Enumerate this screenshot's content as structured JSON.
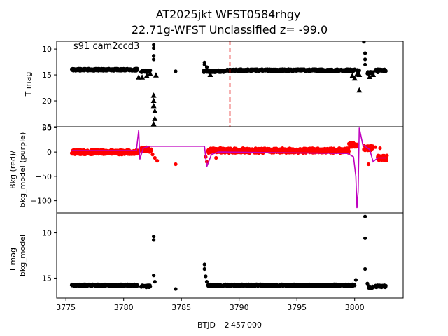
{
  "chart_data": {
    "type": "scatter",
    "title_line1": "AT2025jkt  WFST0584rhgy",
    "title_line2": "22.71g-WFST Unclassified z= -99.0",
    "xlabel": "BTJD −2 457 000",
    "xlim": [
      3774.2,
      3804.2
    ],
    "xticks": [
      3775,
      3780,
      3785,
      3790,
      3795,
      3800
    ],
    "vline_x": 3789.2,
    "vline_color": "#e00000",
    "panels": [
      {
        "id": "tmag",
        "ylabel": [
          "T mag"
        ],
        "annotation": "s91 cam2ccd3",
        "ylim": [
          25,
          8.5
        ],
        "yticks": [
          10,
          15,
          20,
          25
        ],
        "series": [
          {
            "kind": "points",
            "color": "#000000",
            "segments": [
              [
                3775.5,
                3781.2,
                14.0
              ],
              [
                3781.5,
                3782.3,
                14.3
              ],
              [
                3786.9,
                3788.8,
                14.3
              ],
              [
                3788.9,
                3800.0,
                14.1
              ],
              [
                3800.2,
                3800.4,
                14.2
              ],
              [
                3801.1,
                3801.6,
                14.6
              ],
              [
                3801.8,
                3802.7,
                14.1
              ]
            ],
            "isolated": [
              [
                3782.6,
                9.2
              ],
              [
                3782.6,
                9.8
              ],
              [
                3782.6,
                12.0
              ],
              [
                3782.6,
                11.3
              ],
              [
                3784.5,
                14.3
              ],
              [
                3787.0,
                12.6
              ],
              [
                3787.0,
                13.0
              ],
              [
                3787.2,
                13.5
              ],
              [
                3800.8,
                8.6
              ],
              [
                3800.9,
                10.8
              ],
              [
                3800.9,
                12.0
              ],
              [
                3800.9,
                13.0
              ],
              [
                3802.0,
                14.5
              ]
            ]
          },
          {
            "kind": "triangles",
            "color": "#000000",
            "points": [
              [
                3781.3,
                15.5
              ],
              [
                3781.6,
                15.5
              ],
              [
                3782.0,
                15.2
              ],
              [
                3782.3,
                14.8
              ],
              [
                3782.8,
                15.1
              ],
              [
                3782.6,
                19.0
              ],
              [
                3782.6,
                20.0
              ],
              [
                3782.6,
                21.0
              ],
              [
                3782.7,
                22.0
              ],
              [
                3782.7,
                23.5
              ],
              [
                3782.6,
                24.5
              ],
              [
                3787.5,
                15.0
              ],
              [
                3799.8,
                15.2
              ],
              [
                3800.0,
                15.7
              ],
              [
                3800.2,
                14.9
              ],
              [
                3800.4,
                15.0
              ],
              [
                3800.4,
                18.0
              ],
              [
                3801.3,
                15.4
              ],
              [
                3801.6,
                15.0
              ]
            ]
          }
        ]
      },
      {
        "id": "bkg",
        "ylabel": [
          "Bkg (red)/",
          "bkg_model (purple)"
        ],
        "ylim": [
          -125,
          52
        ],
        "yticks": [
          50,
          0,
          -50,
          -100
        ],
        "series": [
          {
            "kind": "points",
            "color": "#ff0000",
            "segments": [
              [
                3775.5,
                3781.3,
                0
              ],
              [
                3781.5,
                3782.4,
                5
              ],
              [
                3787.3,
                3799.5,
                3
              ],
              [
                3799.5,
                3800.2,
                15
              ],
              [
                3800.8,
                3801.6,
                8
              ],
              [
                3802.0,
                3802.8,
                -12
              ]
            ],
            "isolated": [
              [
                3782.5,
                -5
              ],
              [
                3782.7,
                -12
              ],
              [
                3782.9,
                -18
              ],
              [
                3784.5,
                -25
              ],
              [
                3787.1,
                -10
              ],
              [
                3787.2,
                -20
              ],
              [
                3788.0,
                -12
              ],
              [
                3801.2,
                -25
              ],
              [
                3801.8,
                10
              ],
              [
                3802.2,
                8
              ]
            ]
          },
          {
            "kind": "line",
            "color": "#bf00bf",
            "points": [
              [
                3775.5,
                3
              ],
              [
                3781.1,
                3
              ],
              [
                3781.3,
                45
              ],
              [
                3781.4,
                -15
              ],
              [
                3781.7,
                8
              ],
              [
                3782.2,
                12
              ],
              [
                3787.0,
                12
              ],
              [
                3787.2,
                -30
              ],
              [
                3787.6,
                -5
              ],
              [
                3788.2,
                0
              ],
              [
                3799.4,
                -3
              ],
              [
                3799.9,
                -10
              ],
              [
                3800.1,
                -50
              ],
              [
                3800.2,
                -115
              ],
              [
                3800.3,
                -80
              ],
              [
                3800.4,
                50
              ],
              [
                3800.7,
                15
              ],
              [
                3801.3,
                5
              ],
              [
                3801.6,
                -20
              ],
              [
                3802.0,
                -12
              ],
              [
                3802.7,
                -12
              ]
            ]
          }
        ]
      },
      {
        "id": "diff",
        "ylabel": [
          "T mag −",
          "bkg_model"
        ],
        "ylim": [
          17.2,
          7.8
        ],
        "yticks": [
          10,
          15
        ],
        "series": [
          {
            "kind": "points",
            "color": "#000000",
            "segments": [
              [
                3775.5,
                3781.2,
                15.8
              ],
              [
                3781.5,
                3782.3,
                15.9
              ],
              [
                3787.3,
                3800.0,
                15.8
              ],
              [
                3801.2,
                3801.6,
                16.0
              ],
              [
                3801.8,
                3802.7,
                15.9
              ]
            ],
            "isolated": [
              [
                3782.6,
                10.4
              ],
              [
                3782.6,
                10.8
              ],
              [
                3782.6,
                14.7
              ],
              [
                3782.7,
                15.4
              ],
              [
                3784.5,
                16.2
              ],
              [
                3787.0,
                13.5
              ],
              [
                3787.0,
                14.0
              ],
              [
                3787.1,
                14.8
              ],
              [
                3787.2,
                15.4
              ],
              [
                3800.1,
                15.2
              ],
              [
                3800.9,
                8.2
              ],
              [
                3800.9,
                10.6
              ],
              [
                3800.9,
                14.0
              ],
              [
                3801.1,
                15.6
              ],
              [
                3802.0,
                15.8
              ]
            ]
          }
        ]
      }
    ]
  }
}
